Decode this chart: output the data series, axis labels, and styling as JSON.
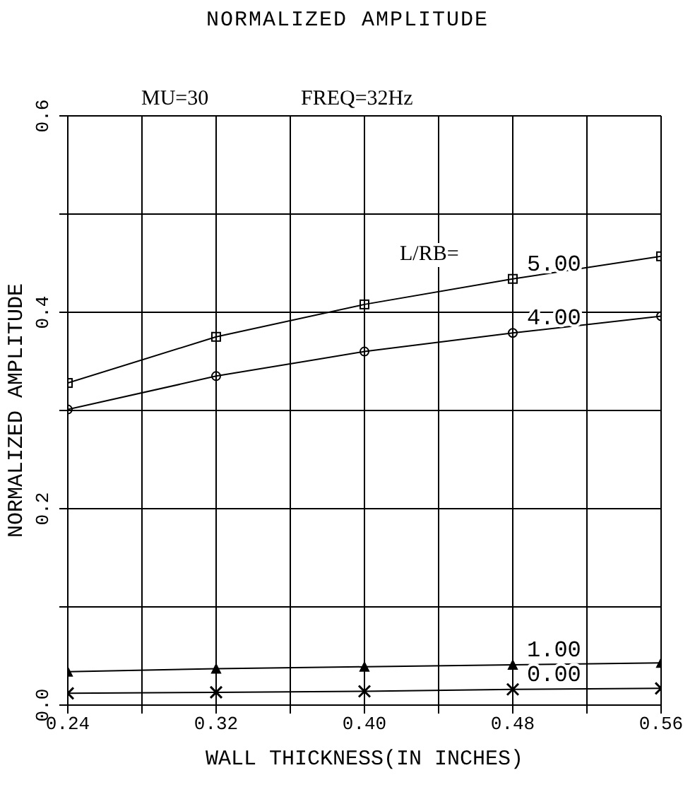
{
  "chart_data": {
    "type": "line",
    "title": "NORMALIZED AMPLITUDE",
    "xlabel": "WALL THICKNESS(IN INCHES)",
    "ylabel": "NORMALIZED AMPLITUDE",
    "annotations": [
      "MU=30",
      "FREQ=32Hz",
      "L/RB="
    ],
    "x": [
      0.24,
      0.32,
      0.4,
      0.48,
      0.56
    ],
    "series": [
      {
        "name": "5.00",
        "color": "#000000",
        "marker": "square",
        "values": [
          0.328,
          0.375,
          0.408,
          0.434,
          0.457
        ]
      },
      {
        "name": "4.00",
        "color": "#000000",
        "marker": "circle",
        "values": [
          0.301,
          0.335,
          0.36,
          0.379,
          0.396
        ]
      },
      {
        "name": "1.00",
        "color": "#000000",
        "marker": "triangle",
        "values": [
          0.034,
          0.037,
          0.039,
          0.041,
          0.043
        ]
      },
      {
        "name": "0.00",
        "color": "#000000",
        "marker": "cross",
        "values": [
          0.012,
          0.013,
          0.014,
          0.016,
          0.017
        ]
      }
    ],
    "xlim": [
      0.24,
      0.56
    ],
    "xticks": [
      0.24,
      {
        "value": 0.28,
        "label": null
      },
      0.32,
      {
        "value": 0.36,
        "label": null
      },
      {
        "value": 0.4,
        "label": "0.40"
      },
      {
        "value": 0.44,
        "label": null
      },
      0.48,
      {
        "value": 0.52,
        "label": null
      },
      0.56
    ],
    "ylim": [
      0,
      0.6
    ],
    "yticks": [
      {
        "value": 0,
        "label": "0.0"
      },
      {
        "value": 0.1,
        "label": null
      },
      0.2,
      {
        "value": 0.3,
        "label": null
      },
      0.4,
      {
        "value": 0.5,
        "label": null
      },
      0.6
    ],
    "grid": true,
    "line_style": "solid"
  }
}
